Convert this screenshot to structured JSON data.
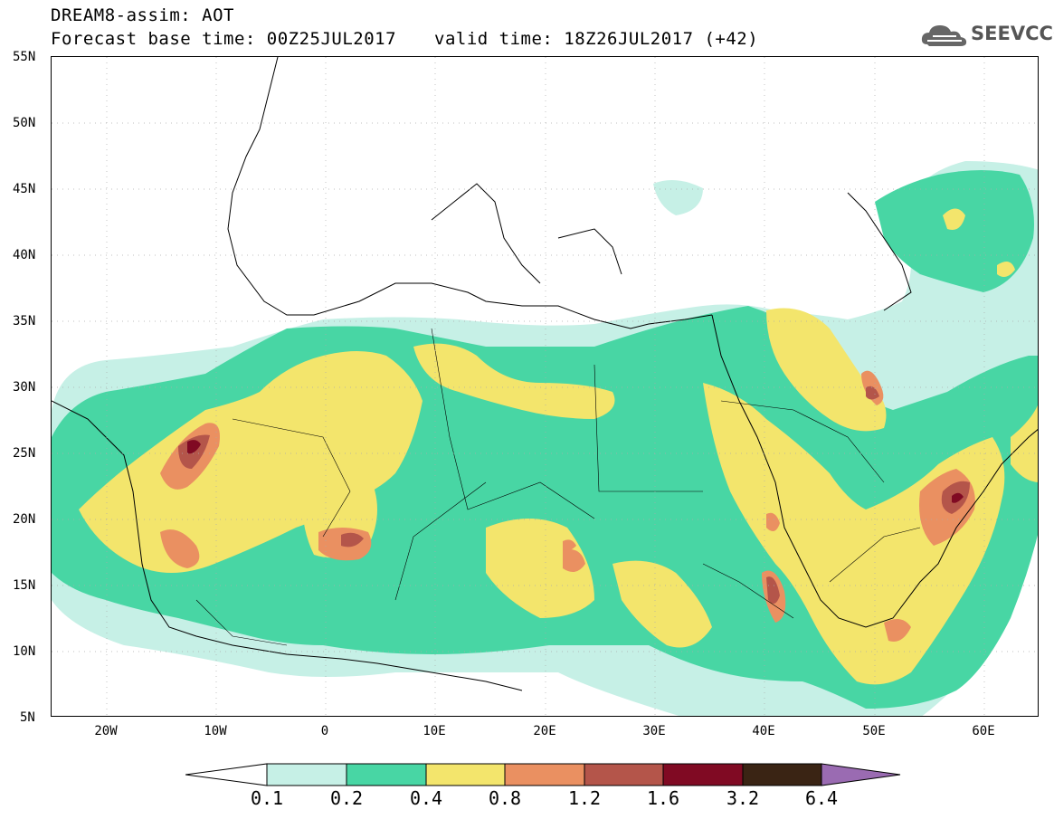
{
  "header": {
    "title": "DREAM8-assim: AOT",
    "base_time": "Forecast base time: 00Z25JUL2017",
    "valid_time": "valid time: 18Z26JUL2017 (+42)",
    "logo_text": "SEEVCCC"
  },
  "map": {
    "projection": "lat-lon",
    "lon_range": [
      -25,
      65
    ],
    "lat_range": [
      5,
      55
    ],
    "lat_labels": [
      "55N",
      "50N",
      "45N",
      "40N",
      "35N",
      "30N",
      "25N",
      "20N",
      "15N",
      "10N",
      "5N"
    ],
    "lon_labels": [
      "20W",
      "10W",
      "0",
      "10E",
      "20E",
      "30E",
      "40E",
      "50E",
      "60E"
    ],
    "grid": "dotted"
  },
  "colorbar": {
    "levels": [
      "0.1",
      "0.2",
      "0.4",
      "0.8",
      "1.2",
      "1.6",
      "3.2",
      "6.4"
    ],
    "colors": [
      "#c6f0e6",
      "#48d6a4",
      "#f3e56c",
      "#ea9061",
      "#b4554a",
      "#800a23",
      "#3a2414",
      "#9a6bb2"
    ],
    "below_color": "#ffffff"
  }
}
